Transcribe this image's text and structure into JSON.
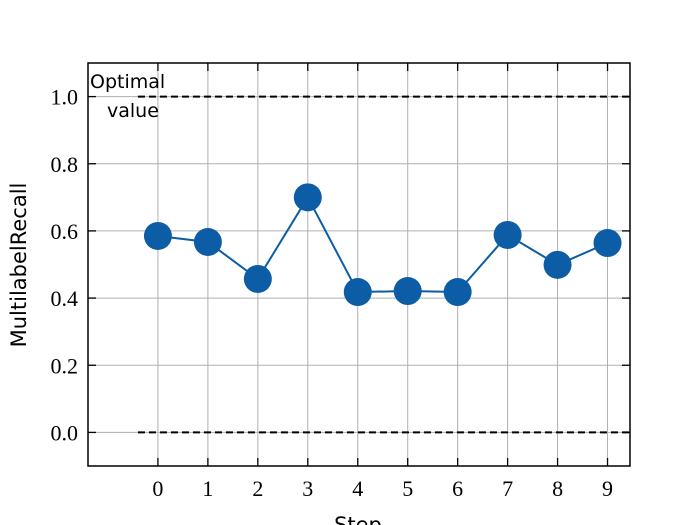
{
  "chart_data": {
    "type": "line",
    "x_label": "Step",
    "y_label": "MultilabelRecall",
    "x": [
      0,
      1,
      2,
      3,
      4,
      5,
      6,
      7,
      8,
      9
    ],
    "series": [
      {
        "color": "#0c5da5",
        "values": [
          0.585,
          0.567,
          0.457,
          0.7,
          0.418,
          0.421,
          0.418,
          0.588,
          0.499,
          0.564
        ]
      }
    ],
    "xlim": [
      -1.4,
      9.45
    ],
    "ylim": [
      -0.1,
      1.1
    ],
    "xticks": [
      0,
      1,
      2,
      3,
      4,
      5,
      6,
      7,
      8,
      9
    ],
    "yticks": [
      {
        "value": 0,
        "label": "0.0"
      },
      {
        "value": 0.2,
        "label": "0.2"
      },
      {
        "value": 0.4,
        "label": "0.4"
      },
      {
        "value": 0.6,
        "label": "0.6"
      },
      {
        "value": 0.8,
        "label": "0.8"
      },
      {
        "value": 1,
        "label": "1.0"
      }
    ],
    "grid": true,
    "reference_lines": [
      {
        "y": 1,
        "x_start": -0.4
      },
      {
        "y": 0,
        "x_start": -0.4
      }
    ],
    "annotations": [
      "Optimal",
      "value"
    ]
  }
}
